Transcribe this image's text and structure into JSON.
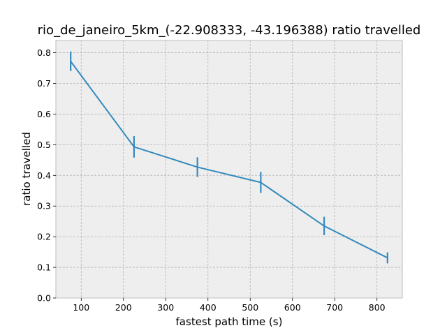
{
  "chart_data": {
    "type": "line",
    "title": "rio_de_janeiro_5km_(-22.908333, -43.196388) ratio travelled",
    "xlabel": "fastest path time (s)",
    "ylabel": "ratio travelled",
    "xlim": [
      40,
      860
    ],
    "ylim": [
      0,
      0.84
    ],
    "xticks": [
      100,
      200,
      300,
      400,
      500,
      600,
      700,
      800
    ],
    "yticks": [
      0.0,
      0.1,
      0.2,
      0.3,
      0.4,
      0.5,
      0.6,
      0.7,
      0.8
    ],
    "xtick_labels": [
      "100",
      "200",
      "300",
      "400",
      "500",
      "600",
      "700",
      "800"
    ],
    "ytick_labels": [
      "0.0",
      "0.1",
      "0.2",
      "0.3",
      "0.4",
      "0.5",
      "0.6",
      "0.7",
      "0.8"
    ],
    "grid": true,
    "series": [
      {
        "x": [
          75,
          225,
          375,
          525,
          675,
          825
        ],
        "y": [
          0.772,
          0.493,
          0.427,
          0.377,
          0.235,
          0.131
        ],
        "yerr": [
          0.032,
          0.035,
          0.032,
          0.034,
          0.03,
          0.018
        ]
      }
    ],
    "colors": {
      "line": "#348abd",
      "background": "#eeeeee",
      "grid": "#b2b2b2",
      "frame": "#bcbcbc"
    }
  }
}
